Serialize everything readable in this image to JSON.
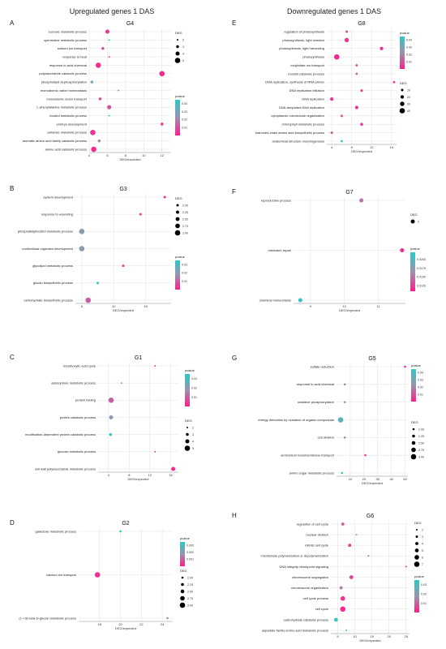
{
  "columns": {
    "left": "Upregulated genes 1 DAS",
    "right": "Downregulated genes 1 DAS"
  },
  "colors": {
    "low_p": "#ff1d8c",
    "mid_p": "#9a93ae",
    "high_p": "#2bc9c6"
  },
  "chart_data": [
    {
      "id": "A",
      "letter": "A",
      "title": "G4",
      "type": "scatter",
      "xlabel": "DEG/expected",
      "xlim": [
        4,
        13
      ],
      "xticks": [
        4,
        6,
        8,
        10,
        12
      ],
      "terms": [
        "sucrose metabolic process",
        "spermidine metabolic process",
        "sodium ion transport",
        "response to heat",
        "response to acid chemical",
        "polysaccharide catabolic process",
        "phospholipid dephosphorylation",
        "monoatomic cation homeostasis",
        "monoatomic anion transport",
        "L-phenylalanine metabolic process",
        "inositol metabolic process",
        "embryo development",
        "cellulose metabolic process",
        "aromatic amino acid family catabolic process",
        "amino acid catabolic process"
      ],
      "x": [
        6.0,
        6.2,
        5.5,
        6.2,
        5.0,
        12.0,
        4.3,
        7.2,
        5.2,
        6.2,
        6.2,
        12.0,
        4.4,
        5.1,
        4.5
      ],
      "deg": [
        4,
        2,
        3,
        2,
        5,
        5,
        3,
        2,
        3,
        4,
        2,
        3,
        5,
        3,
        5
      ],
      "pvalue": [
        0.005,
        0.04,
        0.01,
        0.01,
        0.004,
        0.002,
        0.03,
        0.02,
        0.01,
        0.01,
        0.045,
        0.005,
        0.004,
        0.02,
        0.003
      ],
      "size_legend": {
        "title": "DEG",
        "values": [
          2,
          3,
          4,
          5
        ],
        "labels": [
          "2",
          "3",
          "4",
          "5"
        ],
        "min": 2,
        "max": 5
      },
      "color_legend": {
        "title": "pvalue",
        "min": 0.0,
        "max": 0.045,
        "ticks": [
          0.04,
          0.03,
          0.02,
          0.01
        ],
        "labels": [
          "0.04",
          "0.03",
          "0.02",
          "0.01"
        ]
      }
    },
    {
      "id": "B",
      "letter": "B",
      "title": "G3",
      "type": "scatter",
      "xlabel": "DEG/expected",
      "xlim": [
        4,
        19
      ],
      "xticks": [
        5,
        10,
        15
      ],
      "terms": [
        "system development",
        "response to wounding",
        "phosphatidylinositol metabolic process",
        "multicellular organism development",
        "glycolipid metabolic process",
        "glucan biosynthetic process",
        "carbohydrate biosynthetic process"
      ],
      "x": [
        18.0,
        14.2,
        5.0,
        5.0,
        11.5,
        7.5,
        6.0
      ],
      "deg": [
        2,
        2,
        3,
        3,
        2,
        2,
        3
      ],
      "pvalue": [
        0.003,
        0.005,
        0.02,
        0.02,
        0.006,
        0.035,
        0.01
      ],
      "size_legend": {
        "title": "DEG",
        "values": [
          2.0,
          2.25,
          2.5,
          2.75,
          3.0
        ],
        "labels": [
          "2.00",
          "2.25",
          "2.50",
          "2.75",
          "3.00"
        ],
        "min": 2,
        "max": 3
      },
      "color_legend": {
        "title": "pvalue",
        "min": 0.0,
        "max": 0.035,
        "ticks": [
          0.03,
          0.02,
          0.01
        ],
        "labels": [
          "0.03",
          "0.02",
          "0.01"
        ]
      }
    },
    {
      "id": "C",
      "letter": "C",
      "title": "G1",
      "type": "scatter",
      "xlabel": "DEG/expected",
      "xlim": [
        2,
        17.5
      ],
      "xticks": [
        4,
        8,
        12,
        16
      ],
      "terms": [
        "tricarboxylic acid cycle",
        "asterophore metabolic process",
        "protein folding",
        "protein catabolic process",
        "modification-dependent protein catabolic process",
        "glucose metabolic process",
        "cell wall polysaccharide metabolic process"
      ],
      "x": [
        13.0,
        6.5,
        4.5,
        4.5,
        4.4,
        13.0,
        16.5
      ],
      "deg": [
        2,
        2,
        5,
        4,
        3,
        2,
        4
      ],
      "pvalue": [
        0.004,
        0.03,
        0.01,
        0.02,
        0.035,
        0.005,
        0.002
      ],
      "size_legend": {
        "title": "DEG",
        "values": [
          2,
          3,
          4,
          5
        ],
        "labels": [
          "2",
          "3",
          "4",
          "5"
        ],
        "min": 2,
        "max": 5
      },
      "color_legend": {
        "title": "pvalue",
        "min": 0.0,
        "max": 0.035,
        "ticks": [
          0.03,
          0.02,
          0.01
        ],
        "labels": [
          "0.03",
          "0.02",
          "0.01"
        ]
      }
    },
    {
      "id": "D",
      "letter": "D",
      "title": "G2",
      "type": "scatter",
      "xlabel": "DEG/expected",
      "xlim": [
        16,
        25
      ],
      "xticks": [
        18,
        20,
        22,
        24
      ],
      "terms": [
        "galactose metabolic process",
        "calcium ion transport",
        "(1->3)-beta-D-glucan metabolic process"
      ],
      "x": [
        20.0,
        17.8,
        24.5
      ],
      "deg": [
        2,
        3,
        2
      ],
      "pvalue": [
        0.0035,
        0.0003,
        0.002
      ],
      "size_legend": {
        "title": "DEG",
        "values": [
          2.0,
          2.25,
          2.5,
          2.75,
          3.0
        ],
        "labels": [
          "2.00",
          "2.25",
          "2.50",
          "2.75",
          "3.00"
        ],
        "min": 2,
        "max": 3
      },
      "color_legend": {
        "title": "pvalue",
        "min": 0.0,
        "max": 0.0035,
        "ticks": [
          0.003,
          0.002,
          0.001
        ],
        "labels": [
          "0.003",
          "0.002",
          "0.001"
        ]
      }
    },
    {
      "id": "E",
      "letter": "E",
      "title": "G8",
      "type": "scatter",
      "xlabel": "DEG/expected",
      "xlim": [
        3,
        17
      ],
      "xticks": [
        4,
        8,
        12,
        16
      ],
      "terms": [
        "regulation of photosynthesis",
        "photosynthesis, light reaction",
        "photosynthesis, light harvesting",
        "photosynthesis",
        "molybdate ion transport",
        "inositol catabolic process",
        "DNA replication, synthesis of RNA primer",
        "DNA replication initiation",
        "DNA replication",
        "DNA-templated DNA replication",
        "cytoplasmic microtubule organization",
        "chlorophyll metabolic process",
        "branched-chain amino acid biosynthetic process",
        "anatomical structure morphogenesis"
      ],
      "x": [
        7.0,
        7.0,
        14.0,
        5.0,
        9.0,
        9.0,
        16.5,
        10.0,
        4.0,
        9.0,
        6.0,
        10.0,
        4.0,
        6.0
      ],
      "deg": [
        10,
        30,
        20,
        40,
        8,
        8,
        8,
        10,
        20,
        20,
        10,
        15,
        10,
        8
      ],
      "pvalue": [
        0.01,
        0.005,
        0.003,
        0.002,
        0.01,
        0.015,
        0.005,
        0.005,
        0.003,
        0.005,
        0.01,
        0.005,
        0.01,
        0.04
      ],
      "size_legend": {
        "title": "DEG",
        "values": [
          10,
          20,
          30,
          40
        ],
        "labels": [
          "10",
          "20",
          "30",
          "40"
        ],
        "min": 8,
        "max": 40
      },
      "color_legend": {
        "title": "pvalue",
        "min": 0.0,
        "max": 0.045,
        "ticks": [
          0.04,
          0.03,
          0.02,
          0.01
        ],
        "labels": [
          "0.04",
          "0.03",
          "0.02",
          "0.01"
        ]
      }
    },
    {
      "id": "F",
      "letter": "F",
      "title": "G7",
      "type": "scatter",
      "xlabel": "DEG/expected",
      "xlim": [
        8.5,
        11.8
      ],
      "xticks": [
        9,
        10,
        11
      ],
      "terms": [
        "reproductive process",
        "mismatch repair",
        "chemical homeostasis"
      ],
      "x": [
        10.5,
        11.7,
        8.7
      ],
      "deg": [
        2,
        2,
        2
      ],
      "pvalue": [
        0.015,
        0.0115,
        0.0215
      ],
      "size_legend": {
        "title": "DEG",
        "values": [
          2
        ],
        "labels": [
          "2"
        ],
        "min": 2,
        "max": 2
      },
      "color_legend": {
        "title": "pvalue",
        "min": 0.011,
        "max": 0.022,
        "ticks": [
          0.02,
          0.0175,
          0.015,
          0.0125
        ],
        "labels": [
          "0.0200",
          "0.0175",
          "0.0150",
          "0.0125"
        ]
      }
    },
    {
      "id": "G",
      "letter": "G",
      "title": "G5",
      "type": "scatter",
      "xlabel": "DEG/expected",
      "xlim": [
        0,
        52
      ],
      "xticks": [
        10,
        20,
        30,
        40,
        50
      ],
      "terms": [
        "sulfate reduction",
        "response to acid chemical",
        "oxidative phosphorylation",
        "energy derivation by oxidation of organic compounds",
        "cell division",
        "ammonium transmembrane transport",
        "amino sugar metabolic process"
      ],
      "x": [
        50.0,
        6.0,
        6.0,
        3.0,
        6.0,
        21.0,
        4.0
      ],
      "deg": [
        2,
        2,
        2,
        3,
        2,
        2,
        2
      ],
      "pvalue": [
        0.002,
        0.02,
        0.03,
        0.035,
        0.02,
        0.005,
        0.045
      ],
      "size_legend": {
        "title": "DEG",
        "values": [
          2.0,
          2.25,
          2.5,
          2.75,
          3.0
        ],
        "labels": [
          "2.00",
          "2.25",
          "2.50",
          "2.75",
          "3.00"
        ],
        "min": 2,
        "max": 3
      },
      "color_legend": {
        "title": "pvalue",
        "min": 0.0,
        "max": 0.045,
        "ticks": [
          0.04,
          0.03,
          0.02,
          0.01
        ],
        "labels": [
          "0.04",
          "0.03",
          "0.02",
          "0.01"
        ]
      }
    },
    {
      "id": "H",
      "letter": "H",
      "title": "G6",
      "type": "scatter",
      "xlabel": "DEG/expected",
      "xlim": [
        3,
        26
      ],
      "xticks": [
        5,
        10,
        15,
        20,
        25
      ],
      "terms": [
        "regulation of cell cycle",
        "nuclear division",
        "mitotic cell cycle",
        "microtubule polymerization or depolymerization",
        "DNA integrity checkpoint signaling",
        "chromosome segregation",
        "chromosome organization",
        "cell cycle process",
        "cell cycle",
        "carbohydrate catabolic process",
        "aspartate family amino acid metabolic process"
      ],
      "x": [
        6.5,
        10.5,
        8.5,
        14.0,
        25.0,
        9.0,
        6.0,
        6.5,
        6.5,
        4.5,
        7.5
      ],
      "deg": [
        4,
        2,
        4,
        2,
        2,
        5,
        4,
        6,
        7,
        5,
        2
      ],
      "pvalue": [
        0.01,
        0.02,
        0.005,
        0.01,
        0.005,
        0.005,
        0.015,
        0.003,
        0.002,
        0.033,
        0.03
      ],
      "size_legend": {
        "title": "DEG",
        "values": [
          2,
          3,
          4,
          5,
          6,
          7
        ],
        "labels": [
          "2",
          "3",
          "4",
          "5",
          "6",
          "7"
        ],
        "min": 2,
        "max": 7
      },
      "color_legend": {
        "title": "pvalue",
        "min": 0.0,
        "max": 0.035,
        "ticks": [
          0.03,
          0.02,
          0.01
        ],
        "labels": [
          "0.03",
          "0.02",
          "0.01"
        ]
      }
    }
  ]
}
